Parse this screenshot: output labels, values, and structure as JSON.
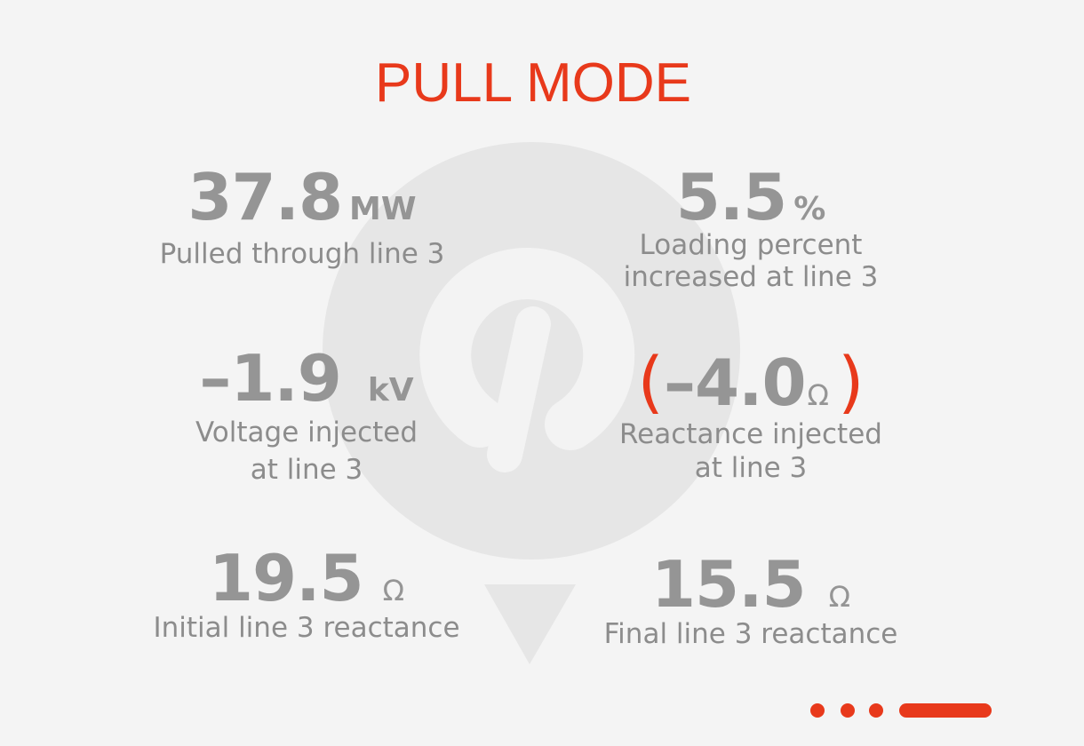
{
  "title": "PULL MODE",
  "icons": {
    "background": "pin-logo-icon",
    "pager": "carousel-dots-icon"
  },
  "colors": {
    "accent": "#e8391b",
    "value": "#959595",
    "label": "#8c8c8c",
    "background": "#f4f4f4"
  },
  "stats": {
    "power": {
      "value": "37.8",
      "unit": "MW",
      "label_lines": [
        "Pulled through line 3"
      ]
    },
    "loading": {
      "value": "5.5",
      "unit": "%",
      "label_lines": [
        "Loading percent",
        "increased at line 3"
      ]
    },
    "voltage": {
      "value": "–1.9",
      "unit": "kV",
      "label_lines": [
        "Voltage injected",
        "at line 3"
      ]
    },
    "reactance_injected": {
      "open_paren": "(",
      "value": "–4.0",
      "unit": "Ω",
      "close_paren": ")",
      "label_lines": [
        "Reactance injected",
        "at line 3"
      ]
    },
    "initial_reactance": {
      "value": "19.5",
      "unit": "Ω",
      "label_lines": [
        "Initial line 3 reactance"
      ]
    },
    "final_reactance": {
      "value": "15.5",
      "unit": "Ω",
      "label_lines": [
        "Final line 3 reactance"
      ]
    }
  }
}
